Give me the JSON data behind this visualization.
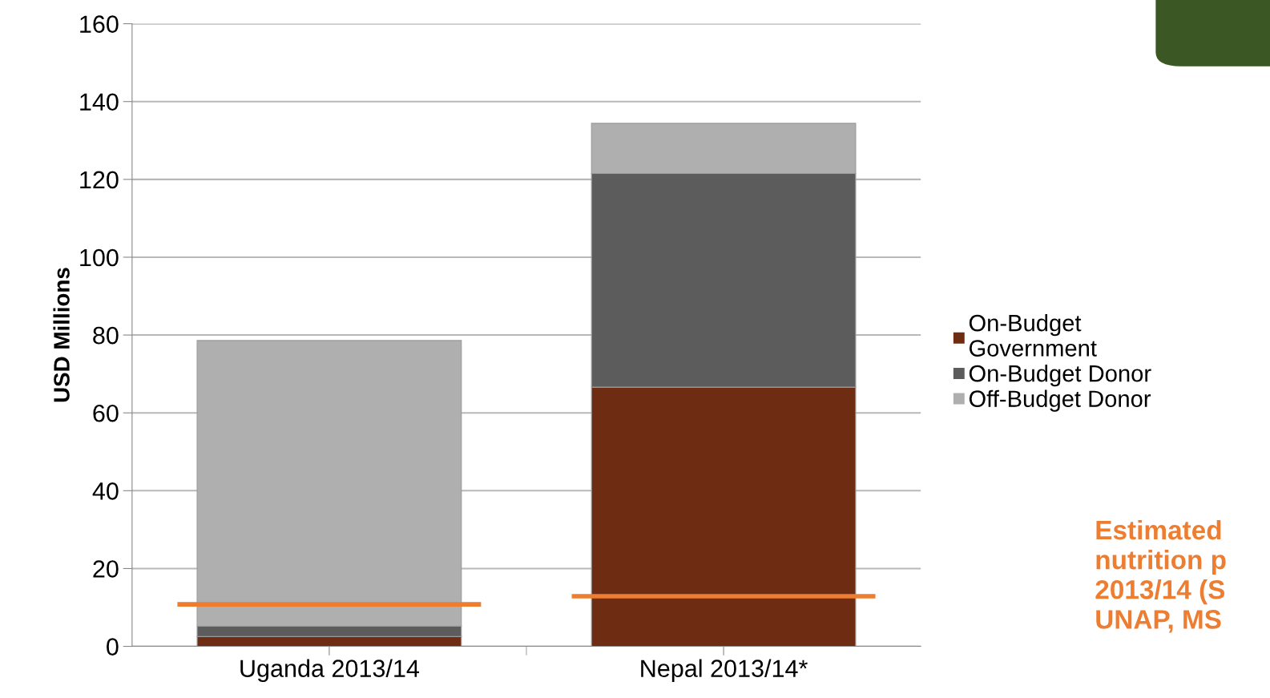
{
  "chart_data": {
    "type": "bar",
    "stacked": true,
    "ylabel": "USD Millions",
    "categories": [
      "Uganda 2013/14",
      "Nepal 2013/14*"
    ],
    "series": [
      {
        "name": "On-Budget Government",
        "color": "#6e2c13",
        "values": [
          2.5,
          66.6
        ]
      },
      {
        "name": "On-Budget Donor",
        "color": "#5c5c5c",
        "values": [
          2.7,
          54.9
        ]
      },
      {
        "name": "Off-Budget Donor",
        "color": "#afafaf",
        "values": [
          73.4,
          12.9
        ]
      }
    ],
    "ref_lines": [
      {
        "axis": "y",
        "value": 10.8,
        "color": "#ed7d31"
      },
      {
        "axis": "y",
        "value": 12.9,
        "color": "#ed7d31"
      }
    ],
    "ylim": [
      0,
      160
    ],
    "yticks": [
      0,
      20,
      40,
      60,
      80,
      100,
      120,
      140,
      160
    ],
    "grid": "y",
    "legend": "right",
    "annotations": [
      "Estimated\nnutrition p\n2013/14 (S\nUNAP, MS"
    ]
  }
}
